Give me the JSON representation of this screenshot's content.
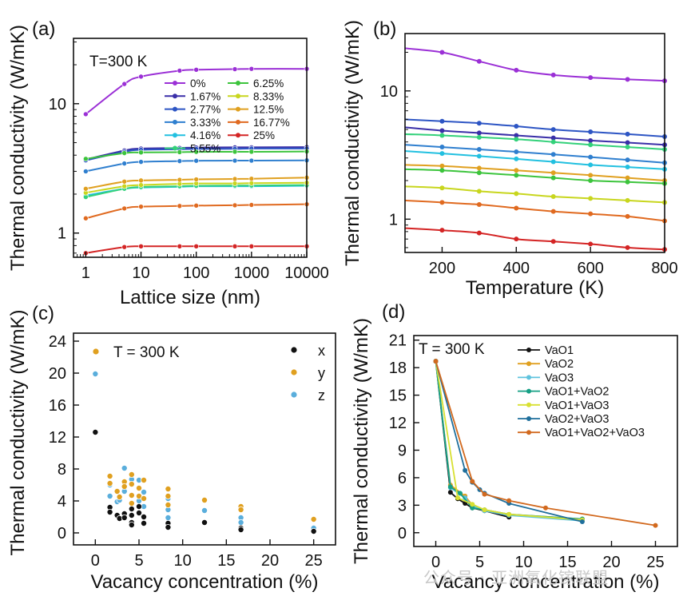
{
  "watermark": "公众号 · 亚洲氧化镓联盟",
  "chart_data": [
    {
      "panel": "(a)",
      "type": "line",
      "xlabel": "Lattice size (nm)",
      "ylabel": "Thermal conductivity (W/mK)",
      "xscale": "log",
      "yscale": "log",
      "xlim": [
        0.6,
        10000
      ],
      "ylim": [
        0.65,
        32
      ],
      "xticks": [
        1,
        10,
        100,
        1000,
        10000
      ],
      "xtick_labels": [
        "1",
        "10",
        "100",
        "1000",
        "10000"
      ],
      "yticks": [
        1,
        10
      ],
      "ytick_labels": [
        "1",
        "10"
      ],
      "annotation": "T=300 K",
      "legend_placement": "top-right",
      "x": [
        1,
        5,
        10,
        50,
        100,
        500,
        1000,
        10000
      ],
      "series": [
        {
          "name": "0%",
          "color": "#9b30d6",
          "values": [
            8.3,
            14.2,
            16.2,
            18.0,
            18.3,
            18.5,
            18.6,
            18.6
          ]
        },
        {
          "name": "1.67%",
          "color": "#3a2fa8",
          "values": [
            3.7,
            4.35,
            4.5,
            4.55,
            4.58,
            4.6,
            4.6,
            4.62
          ]
        },
        {
          "name": "2.77%",
          "color": "#2d55c4",
          "values": [
            3.65,
            4.25,
            4.4,
            4.45,
            4.47,
            4.48,
            4.5,
            4.5
          ]
        },
        {
          "name": "3.33%",
          "color": "#2f7fcf",
          "values": [
            3.0,
            3.45,
            3.55,
            3.6,
            3.62,
            3.63,
            3.63,
            3.65
          ]
        },
        {
          "name": "4.16%",
          "color": "#22c0e0",
          "values": [
            1.95,
            2.2,
            2.25,
            2.28,
            2.3,
            2.3,
            2.3,
            2.32
          ]
        },
        {
          "name": "5.55%",
          "color": "#33d17a",
          "values": [
            1.9,
            2.2,
            2.27,
            2.3,
            2.32,
            2.33,
            2.33,
            2.35
          ]
        },
        {
          "name": "6.25%",
          "color": "#3cc43c",
          "values": [
            3.75,
            4.15,
            4.2,
            4.22,
            4.24,
            4.25,
            4.25,
            4.27
          ]
        },
        {
          "name": "8.33%",
          "color": "#c8d61e",
          "values": [
            2.05,
            2.3,
            2.35,
            2.4,
            2.42,
            2.42,
            2.43,
            2.45
          ]
        },
        {
          "name": "12.5%",
          "color": "#e0a020",
          "values": [
            2.2,
            2.5,
            2.55,
            2.58,
            2.6,
            2.62,
            2.63,
            2.68
          ]
        },
        {
          "name": "16.77%",
          "color": "#e06a20",
          "values": [
            1.3,
            1.55,
            1.6,
            1.62,
            1.63,
            1.64,
            1.65,
            1.67
          ]
        },
        {
          "name": "25%",
          "color": "#d42525",
          "values": [
            0.7,
            0.78,
            0.79,
            0.79,
            0.79,
            0.79,
            0.79,
            0.79
          ]
        }
      ]
    },
    {
      "panel": "(b)",
      "type": "line",
      "xlabel": "Temperature (K)",
      "ylabel": "Thermal conductivity (W/mK)",
      "yscale": "log",
      "xlim": [
        100,
        800
      ],
      "ylim": [
        0.55,
        28
      ],
      "xticks": [
        200,
        400,
        600,
        800
      ],
      "xtick_labels": [
        "200",
        "400",
        "600",
        "800"
      ],
      "yticks": [
        1,
        10
      ],
      "ytick_labels": [
        "1",
        "10"
      ],
      "x": [
        100,
        200,
        300,
        400,
        500,
        600,
        700,
        800
      ],
      "series": [
        {
          "color": "#9b30d6",
          "values": [
            21.5,
            20.0,
            17.0,
            14.5,
            13.3,
            12.7,
            12.3,
            12.0
          ]
        },
        {
          "color": "#2d55c4",
          "values": [
            6.0,
            5.8,
            5.6,
            5.3,
            5.0,
            4.8,
            4.6,
            4.4
          ]
        },
        {
          "color": "#3a2fa8",
          "values": [
            5.2,
            4.9,
            4.7,
            4.5,
            4.3,
            4.1,
            3.95,
            3.8
          ]
        },
        {
          "color": "#33d17a",
          "values": [
            4.6,
            4.5,
            4.35,
            4.2,
            4.0,
            3.8,
            3.65,
            3.5
          ]
        },
        {
          "color": "#2f7fcf",
          "values": [
            3.8,
            3.65,
            3.5,
            3.35,
            3.2,
            3.05,
            2.9,
            2.75
          ]
        },
        {
          "color": "#22c0e0",
          "values": [
            3.4,
            3.25,
            3.1,
            2.95,
            2.8,
            2.65,
            2.55,
            2.45
          ]
        },
        {
          "color": "#e0a020",
          "values": [
            2.65,
            2.6,
            2.5,
            2.4,
            2.3,
            2.2,
            2.1,
            2.0
          ]
        },
        {
          "color": "#3cc43c",
          "values": [
            2.45,
            2.4,
            2.3,
            2.2,
            2.1,
            2.0,
            1.95,
            1.9
          ]
        },
        {
          "color": "#c8d61e",
          "values": [
            1.8,
            1.75,
            1.65,
            1.58,
            1.5,
            1.45,
            1.4,
            1.35
          ]
        },
        {
          "color": "#e06a20",
          "values": [
            1.4,
            1.35,
            1.3,
            1.22,
            1.15,
            1.1,
            1.05,
            0.97
          ]
        },
        {
          "color": "#d42525",
          "values": [
            0.85,
            0.82,
            0.78,
            0.7,
            0.67,
            0.64,
            0.6,
            0.58
          ]
        }
      ]
    },
    {
      "panel": "(c)",
      "type": "scatter",
      "xlabel": "Vacancy concentration (%)",
      "ylabel": "Thermal conductivity (W/mK)",
      "xlim": [
        -2.5,
        27.5
      ],
      "ylim": [
        -1.5,
        25
      ],
      "xticks": [
        0,
        5,
        10,
        15,
        20,
        25
      ],
      "xtick_labels": [
        "0",
        "5",
        "10",
        "15",
        "20",
        "25"
      ],
      "yticks": [
        0,
        4,
        8,
        12,
        16,
        20,
        24
      ],
      "ytick_labels": [
        "0",
        "4",
        "8",
        "12",
        "16",
        "20",
        "24"
      ],
      "annotation": "T = 300 K",
      "legend_placement": "top-right",
      "series": [
        {
          "name": "x",
          "color": "#111111",
          "points": [
            [
              0,
              12.6
            ],
            [
              1.67,
              3.2
            ],
            [
              1.67,
              2.6
            ],
            [
              2.5,
              2.2
            ],
            [
              2.77,
              1.8
            ],
            [
              3.33,
              2.4
            ],
            [
              3.33,
              1.9
            ],
            [
              4.16,
              3.0
            ],
            [
              4.16,
              2.2
            ],
            [
              4.16,
              1.3
            ],
            [
              4.16,
              1.0
            ],
            [
              5.0,
              3.3
            ],
            [
              5.0,
              2.5
            ],
            [
              5.55,
              2.0
            ],
            [
              5.55,
              1.2
            ],
            [
              8.33,
              1.2
            ],
            [
              8.33,
              0.7
            ],
            [
              12.5,
              1.3
            ],
            [
              16.67,
              0.6
            ],
            [
              16.67,
              0.4
            ],
            [
              25,
              0.2
            ]
          ]
        },
        {
          "name": "y",
          "color": "#e0a020",
          "points": [
            [
              1.67,
              7.1
            ],
            [
              1.67,
              6.2
            ],
            [
              2.5,
              5.2
            ],
            [
              2.77,
              4.5
            ],
            [
              3.33,
              6.4
            ],
            [
              3.33,
              5.8
            ],
            [
              4.16,
              7.3
            ],
            [
              4.16,
              6.1
            ],
            [
              4.16,
              4.7
            ],
            [
              4.16,
              3.7
            ],
            [
              5.0,
              5.6
            ],
            [
              5.0,
              4.6
            ],
            [
              5.55,
              6.6
            ],
            [
              5.55,
              4.3
            ],
            [
              8.33,
              5.5
            ],
            [
              8.33,
              4.6
            ],
            [
              8.33,
              3.5
            ],
            [
              12.5,
              4.1
            ],
            [
              16.67,
              3.3
            ],
            [
              16.67,
              2.9
            ],
            [
              25,
              1.7
            ]
          ]
        },
        {
          "name": "z",
          "color": "#5aaedc",
          "points": [
            [
              0,
              19.9
            ],
            [
              1.67,
              6.0
            ],
            [
              1.67,
              4.6
            ],
            [
              2.5,
              3.9
            ],
            [
              2.77,
              4.1
            ],
            [
              3.33,
              8.1
            ],
            [
              3.33,
              5.2
            ],
            [
              4.16,
              6.7
            ],
            [
              4.16,
              4.7
            ],
            [
              4.16,
              3.0
            ],
            [
              5.0,
              6.6
            ],
            [
              5.0,
              4.0
            ],
            [
              5.55,
              5.1
            ],
            [
              5.55,
              3.3
            ],
            [
              8.33,
              4.3
            ],
            [
              8.33,
              2.9
            ],
            [
              8.33,
              1.9
            ],
            [
              12.5,
              2.8
            ],
            [
              16.67,
              1.9
            ],
            [
              16.67,
              1.3
            ],
            [
              25,
              0.6
            ]
          ]
        }
      ]
    },
    {
      "panel": "(d)",
      "type": "line",
      "xlabel": "Vacancy concentration (%)",
      "ylabel": "Thermal conductivity (W/mK)",
      "xlim": [
        -2.5,
        27.5
      ],
      "ylim": [
        -1.5,
        21.5
      ],
      "xticks": [
        0,
        5,
        10,
        15,
        20,
        25
      ],
      "xtick_labels": [
        "0",
        "5",
        "10",
        "15",
        "20",
        "25"
      ],
      "yticks": [
        0,
        3,
        6,
        9,
        12,
        15,
        18,
        21
      ],
      "ytick_labels": [
        "0",
        "3",
        "6",
        "9",
        "12",
        "15",
        "18",
        "21"
      ],
      "annotation": "T = 300 K",
      "legend_placement": "top-right",
      "series": [
        {
          "name": "VaO1",
          "color": "#111111",
          "x": [
            0,
            1.67,
            2.5,
            3.33,
            4.16,
            5.55,
            8.33
          ],
          "values": [
            18.7,
            4.4,
            3.7,
            3.2,
            2.7,
            2.4,
            1.7
          ]
        },
        {
          "name": "VaO2",
          "color": "#e0a020",
          "x": [
            0,
            1.67,
            3.33,
            4.16,
            5.55,
            8.33,
            16.67
          ],
          "values": [
            18.7,
            5.2,
            4.0,
            3.0,
            2.5,
            2.0,
            1.5
          ]
        },
        {
          "name": "VaO3",
          "color": "#5fc3de",
          "x": [
            0,
            1.67,
            3.33,
            4.16,
            5.55,
            8.33,
            16.67
          ],
          "values": [
            18.7,
            4.9,
            3.8,
            2.9,
            2.4,
            1.9,
            1.3
          ]
        },
        {
          "name": "VaO1+VaO2",
          "color": "#16a085",
          "x": [
            0,
            1.67,
            2.77,
            4.16,
            5.55,
            8.33,
            16.67
          ],
          "values": [
            18.7,
            5.0,
            4.3,
            2.7,
            2.5,
            2.0,
            1.5
          ]
        },
        {
          "name": "VaO1+VaO3",
          "color": "#d8e032",
          "x": [
            0,
            2.5,
            4.16,
            5.55,
            8.33,
            16.67
          ],
          "values": [
            18.7,
            3.8,
            3.1,
            2.5,
            2.0,
            1.4
          ]
        },
        {
          "name": "VaO2+VaO3",
          "color": "#1f6f9c",
          "x": [
            0,
            3.33,
            4.16,
            5.0,
            5.55,
            8.33,
            16.67
          ],
          "values": [
            18.7,
            6.8,
            5.5,
            4.7,
            4.3,
            3.2,
            1.2
          ]
        },
        {
          "name": "VaO1+VaO2+VaO3",
          "color": "#d2691e",
          "x": [
            0,
            4.16,
            5.55,
            8.33,
            12.5,
            25
          ],
          "values": [
            18.7,
            5.6,
            4.2,
            3.5,
            2.7,
            0.8
          ]
        }
      ]
    }
  ]
}
